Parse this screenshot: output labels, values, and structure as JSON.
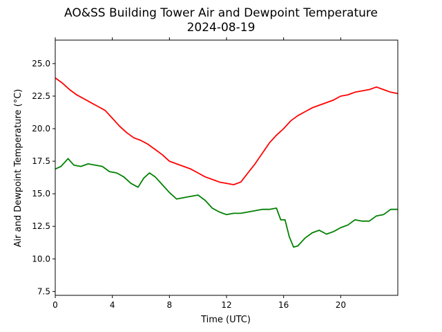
{
  "chart_data": {
    "type": "line",
    "title": "AO&SS Building Tower Air and Dewpoint Temperature",
    "subtitle": "2024-08-19",
    "xlabel": "Time (UTC)",
    "ylabel": "Air and Dewpoint Temperature (°C)",
    "xlim": [
      0,
      24
    ],
    "ylim": [
      7.2,
      26.8
    ],
    "xticks": [
      0,
      4,
      8,
      12,
      16,
      20
    ],
    "xtick_labels": [
      "0",
      "4",
      "8",
      "12",
      "16",
      "20"
    ],
    "yticks": [
      7.5,
      10.0,
      12.5,
      15.0,
      17.5,
      20.0,
      22.5,
      25.0
    ],
    "ytick_labels": [
      "7.5",
      "10.0",
      "12.5",
      "15.0",
      "17.5",
      "20.0",
      "22.5",
      "25.0"
    ],
    "grid": false,
    "series": [
      {
        "color": "#ff0000",
        "x": [
          0,
          0.5,
          1,
          1.5,
          2,
          2.5,
          3,
          3.5,
          4,
          4.5,
          5,
          5.5,
          6,
          6.5,
          7,
          7.5,
          8,
          8.5,
          9,
          9.5,
          10,
          10.5,
          11,
          11.5,
          12,
          12.5,
          13,
          13.5,
          14,
          14.5,
          15,
          15.5,
          16,
          16.5,
          17,
          17.5,
          18,
          18.5,
          19,
          19.5,
          20,
          20.5,
          21,
          21.5,
          22,
          22.5,
          23,
          23.5,
          24
        ],
        "y": [
          23.9,
          23.5,
          23.0,
          22.6,
          22.3,
          22.0,
          21.7,
          21.4,
          20.8,
          20.2,
          19.7,
          19.3,
          19.1,
          18.8,
          18.4,
          18.0,
          17.5,
          17.3,
          17.1,
          16.9,
          16.6,
          16.3,
          16.1,
          15.9,
          15.8,
          15.7,
          15.9,
          16.6,
          17.3,
          18.1,
          18.9,
          19.5,
          20.0,
          20.6,
          21.0,
          21.3,
          21.6,
          21.8,
          22.0,
          22.2,
          22.5,
          22.6,
          22.8,
          22.9,
          23.0,
          23.2,
          23.0,
          22.8,
          22.7
        ]
      },
      {
        "color": "#008000",
        "x": [
          0,
          0.4,
          0.9,
          1.3,
          1.8,
          2.3,
          2.8,
          3.3,
          3.8,
          4.3,
          4.8,
          5.3,
          5.8,
          6.2,
          6.6,
          7.0,
          7.5,
          8.0,
          8.5,
          9.0,
          9.5,
          10.0,
          10.5,
          11.0,
          11.5,
          12.0,
          12.5,
          13.0,
          13.5,
          14.0,
          14.5,
          15.0,
          15.5,
          15.8,
          16.1,
          16.4,
          16.7,
          17.0,
          17.5,
          18.0,
          18.5,
          19.0,
          19.5,
          20.0,
          20.5,
          21.0,
          21.5,
          22.0,
          22.5,
          23.0,
          23.5,
          24.0
        ],
        "y": [
          16.9,
          17.1,
          17.7,
          17.2,
          17.1,
          17.3,
          17.2,
          17.1,
          16.7,
          16.6,
          16.3,
          15.8,
          15.5,
          16.2,
          16.6,
          16.3,
          15.7,
          15.1,
          14.6,
          14.7,
          14.8,
          14.9,
          14.5,
          13.9,
          13.6,
          13.4,
          13.5,
          13.5,
          13.6,
          13.7,
          13.8,
          13.8,
          13.9,
          13.0,
          13.0,
          11.7,
          10.9,
          11.0,
          11.6,
          12.0,
          12.2,
          11.9,
          12.1,
          12.4,
          12.6,
          13.0,
          12.9,
          12.9,
          13.3,
          13.4,
          13.8,
          13.8
        ]
      }
    ]
  }
}
